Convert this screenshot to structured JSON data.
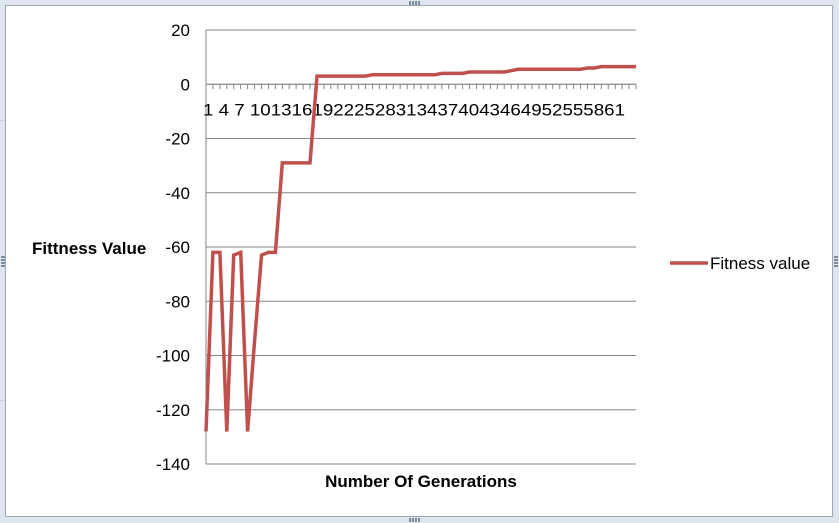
{
  "chart_data": {
    "type": "line",
    "title": "",
    "xlabel": "Number Of Generations",
    "ylabel": "Fittness  Value",
    "ylim": [
      -140,
      20
    ],
    "y_ticks": [
      20,
      0,
      -20,
      -40,
      -60,
      -80,
      -100,
      -120,
      -140
    ],
    "y_tick_labels": [
      "20",
      "0",
      "-20",
      "-40",
      "-60",
      "-80",
      "-100",
      "-120",
      "-140"
    ],
    "x_tick_labels": [
      "1",
      "4",
      "7",
      "10",
      "13",
      "16",
      "19",
      "22",
      "25",
      "28",
      "31",
      "34",
      "37",
      "40",
      "43",
      "46",
      "49",
      "52",
      "55",
      "58",
      "61"
    ],
    "x_tick_text": "1  4  7  101316192225283134374043464952555861",
    "grid": true,
    "legend_position": "right",
    "series": [
      {
        "name": "Fitness value",
        "color": "#c0504d",
        "x": [
          1,
          2,
          3,
          4,
          5,
          6,
          7,
          8,
          9,
          10,
          11,
          12,
          13,
          14,
          15,
          16,
          17,
          18,
          19,
          20,
          21,
          22,
          23,
          24,
          25,
          26,
          27,
          28,
          29,
          30,
          31,
          32,
          33,
          34,
          35,
          36,
          37,
          38,
          39,
          40,
          41,
          42,
          43,
          44,
          45,
          46,
          47,
          48,
          49,
          50,
          51,
          52,
          53,
          54,
          55,
          56,
          57,
          58,
          59,
          60,
          61,
          62,
          63
        ],
        "values": [
          -128,
          -62,
          -62,
          -128,
          -63,
          -62,
          -128,
          -95,
          -63,
          -62,
          -62,
          -29,
          -29,
          -29,
          -29,
          -29,
          3,
          3,
          3,
          3,
          3,
          3,
          3,
          3,
          3.5,
          3.5,
          3.5,
          3.5,
          3.5,
          3.5,
          3.5,
          3.5,
          3.5,
          3.5,
          4,
          4,
          4,
          4,
          4.5,
          4.5,
          4.5,
          4.5,
          4.5,
          4.5,
          5,
          5.5,
          5.5,
          5.5,
          5.5,
          5.5,
          5.5,
          5.5,
          5.5,
          5.5,
          5.5,
          6,
          6,
          6.5,
          6.5,
          6.5,
          6.5,
          6.5,
          6.5
        ]
      }
    ]
  }
}
